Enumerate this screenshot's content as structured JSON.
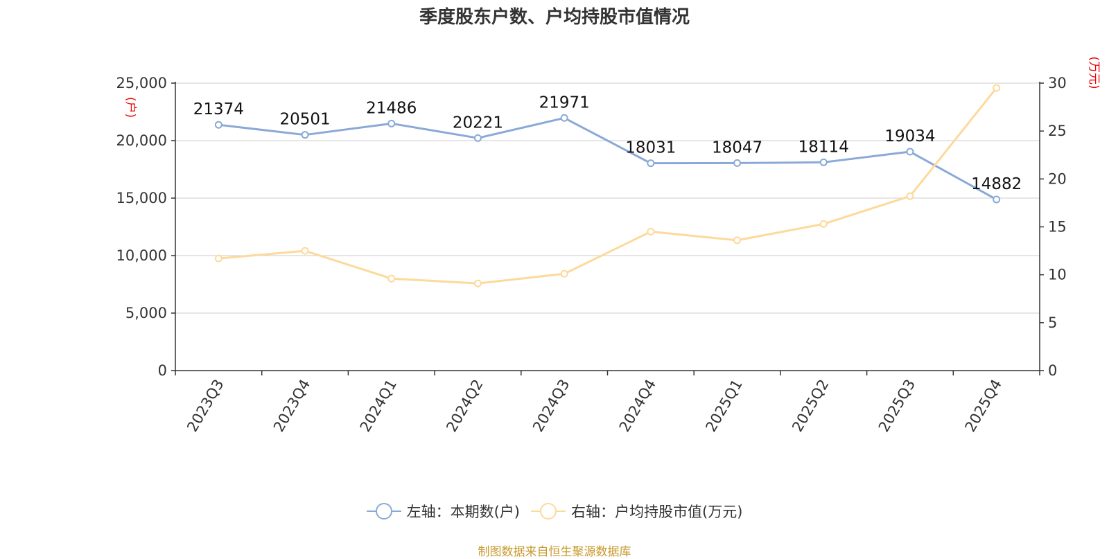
{
  "chart_data": {
    "type": "line",
    "title": "季度股东户数、户均持股市值情况",
    "categories": [
      "2023Q3",
      "2023Q4",
      "2024Q1",
      "2024Q2",
      "2024Q3",
      "2024Q4",
      "2025Q1",
      "2025Q2",
      "2025Q3",
      "2025Q4"
    ],
    "series": [
      {
        "name": "左轴：本期数(户)",
        "axis": "left",
        "color": "#8aa9d8",
        "values": [
          21374,
          20501,
          21486,
          20221,
          21971,
          18031,
          18047,
          18114,
          19034,
          14882
        ],
        "data_labels": [
          "21374",
          "20501",
          "21486",
          "20221",
          "21971",
          "18031",
          "18047",
          "18114",
          "19034",
          "14882"
        ]
      },
      {
        "name": "右轴：户均持股市值(万元)",
        "axis": "right",
        "color": "#fdd99b",
        "values": [
          11.7,
          12.5,
          9.6,
          9.1,
          10.1,
          14.5,
          13.6,
          15.3,
          18.2,
          29.5
        ]
      }
    ],
    "y_left": {
      "label": "(户)",
      "min": 0,
      "max": 25000,
      "ticks": [
        0,
        5000,
        10000,
        15000,
        20000,
        25000
      ],
      "tick_labels": [
        "0",
        "5,000",
        "10,000",
        "15,000",
        "20,000",
        "25,000"
      ]
    },
    "y_right": {
      "label": "(万元)",
      "min": 0,
      "max": 30,
      "ticks": [
        0,
        5,
        10,
        15,
        20,
        25,
        30
      ],
      "tick_labels": [
        "0",
        "5",
        "10",
        "15",
        "20",
        "25",
        "30"
      ]
    },
    "grid": true,
    "legend_position": "bottom-center"
  },
  "legend": {
    "left_series_label": "左轴：本期数(户)",
    "right_series_label": "右轴：户均持股市值(万元)"
  },
  "source": "制图数据来自恒生聚源数据库",
  "colors": {
    "left_series": "#8aa9d8",
    "right_series": "#fdd99b",
    "axis_label": "#ee0000",
    "grid": "#cccccc",
    "source_text": "#c89a2e"
  }
}
